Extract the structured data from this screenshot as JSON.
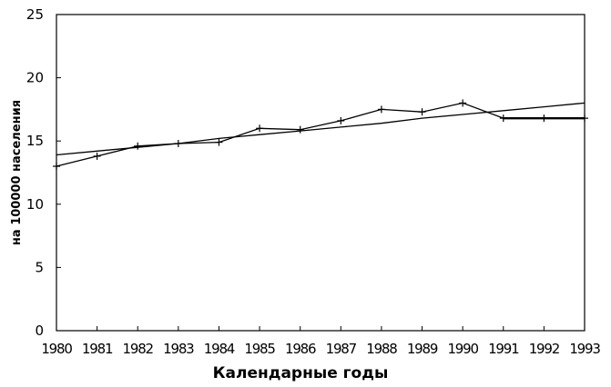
{
  "chart_data": {
    "type": "line",
    "title": "",
    "xlabel": "Календарные годы",
    "ylabel": "на 100000 населения",
    "x": [
      1980,
      1981,
      1982,
      1983,
      1984,
      1985,
      1986,
      1987,
      1988,
      1989,
      1990,
      1991,
      1992,
      1993
    ],
    "xlim": [
      1980,
      1993
    ],
    "ylim": [
      0,
      25
    ],
    "yticks": [
      0,
      5,
      10,
      15,
      20,
      25
    ],
    "grid": false,
    "legend": "none",
    "series": [
      {
        "kind": "observed",
        "markers": "plus",
        "color": "#000000",
        "values": [
          13.0,
          13.8,
          14.6,
          14.8,
          14.9,
          16.0,
          15.9,
          16.6,
          17.5,
          17.3,
          18.0,
          16.8,
          16.8,
          16.8
        ]
      },
      {
        "kind": "trend",
        "markers": "none",
        "color": "#000000",
        "values": [
          13.9,
          14.2,
          14.5,
          14.8,
          15.2,
          15.5,
          15.8,
          16.1,
          16.4,
          16.8,
          17.1,
          17.4,
          17.7,
          18.0
        ]
      }
    ]
  }
}
